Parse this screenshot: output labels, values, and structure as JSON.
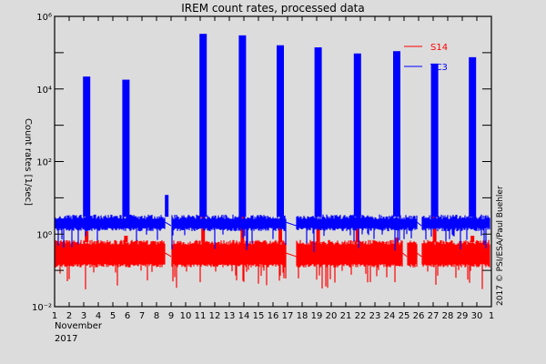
{
  "chart_data": {
    "type": "line",
    "title": "IREM count rates, processed data",
    "xlabel": "November 2017",
    "xlabel_month": "November",
    "xlabel_year": "2017",
    "ylabel": "Count rates [1/sec]",
    "yscale": "log",
    "ylim": [
      0.01,
      1000000
    ],
    "xlim": [
      1,
      31
    ],
    "x_tick_labels": [
      "1",
      "2",
      "3",
      "4",
      "5",
      "6",
      "7",
      "8",
      "9",
      "10",
      "11",
      "12",
      "13",
      "14",
      "15",
      "16",
      "17",
      "18",
      "19",
      "20",
      "21",
      "22",
      "23",
      "24",
      "25",
      "26",
      "27",
      "28",
      "29",
      "30",
      "1"
    ],
    "y_tick_labels": [
      {
        "value": 1000000,
        "label": "10⁶"
      },
      {
        "value": 10000,
        "label": "10⁴"
      },
      {
        "value": 100,
        "label": "10²"
      },
      {
        "value": 1,
        "label": "10⁰"
      },
      {
        "value": 0.01,
        "label": "10⁻²"
      }
    ],
    "grid": false,
    "legend_position": "upper right",
    "credit": "2017 © PSI/ESA/Paul Buehler",
    "series": [
      {
        "name": "S14",
        "color": "#ff0000",
        "baseline_low": 0.15,
        "baseline_high": 0.6,
        "spikes_day": [
          3.2,
          5.9,
          11.2,
          13.9,
          16.5,
          19.1,
          21.8,
          24.5,
          27.1,
          29.7
        ],
        "spikes_peak": [
          1.2,
          0.9,
          4.0,
          5.0,
          2.5,
          2.0,
          1.5,
          0.8,
          20.0,
          0.9
        ],
        "data_gaps_days": [
          [
            8.6,
            9.0
          ],
          [
            16.9,
            17.6
          ],
          [
            24.9,
            25.2
          ],
          [
            25.9,
            26.2
          ]
        ]
      },
      {
        "name": "TC3",
        "color": "#0000ff",
        "baseline_low": 1.5,
        "baseline_high": 3.0,
        "spikes_day": [
          3.2,
          5.9,
          8.7,
          11.2,
          13.9,
          16.5,
          19.1,
          21.8,
          24.5,
          27.1,
          29.7
        ],
        "spikes_peak": [
          22000,
          18000,
          12,
          330000,
          300000,
          160000,
          140000,
          95000,
          110000,
          50000,
          75000
        ],
        "data_gaps_days": [
          [
            8.6,
            9.0
          ],
          [
            16.9,
            17.6
          ],
          [
            25.9,
            26.2
          ]
        ]
      }
    ]
  }
}
